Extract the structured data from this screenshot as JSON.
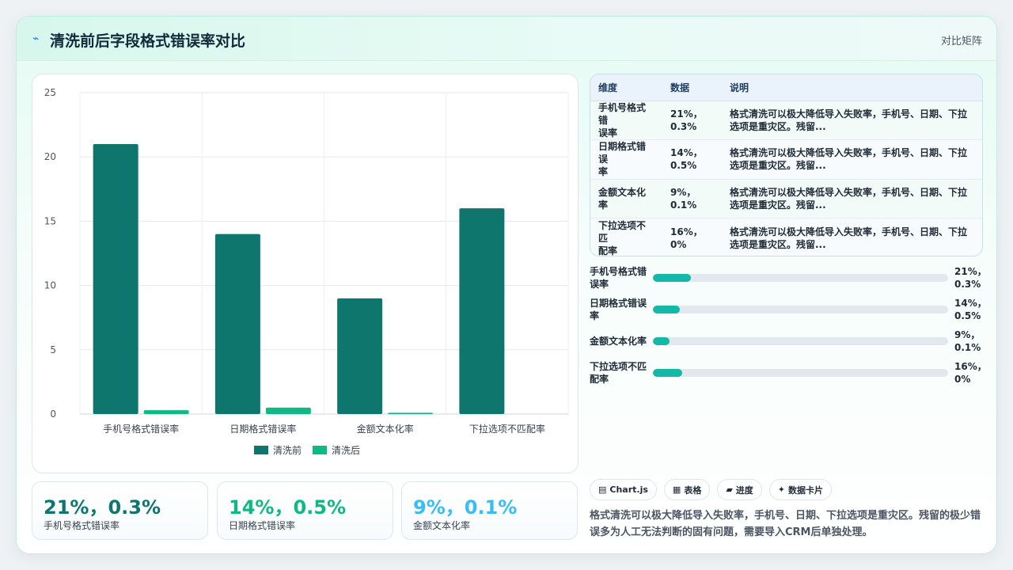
{
  "header": {
    "title": "清洗前后字段格式错误率对比",
    "badge": "对比矩阵",
    "title_icon": "sparkle-icon"
  },
  "chart_data": {
    "type": "bar",
    "categories": [
      "手机号格式错误率",
      "日期格式错误率",
      "金额文本化率",
      "下拉选项不匹配率"
    ],
    "series": [
      {
        "name": "清洗前",
        "values": [
          21,
          14,
          9,
          16
        ],
        "color": "#0f766e"
      },
      {
        "name": "清洗后",
        "values": [
          0.3,
          0.5,
          0.1,
          0
        ],
        "color": "#10b981"
      }
    ],
    "ylim": [
      0,
      25
    ],
    "yticks": [
      0,
      5,
      10,
      15,
      20,
      25
    ],
    "grid": true,
    "legend": "bottom"
  },
  "metrics": [
    {
      "value": "21%，0.3%",
      "label": "手机号格式错误率",
      "color": "#0f766e"
    },
    {
      "value": "14%，0.5%",
      "label": "日期格式错误率",
      "color": "#10b981"
    },
    {
      "value": "9%，0.1%",
      "label": "金额文本化率",
      "color": "#38bdf8"
    }
  ],
  "table": {
    "headers": [
      "维度",
      "数据",
      "说明"
    ],
    "rows": [
      {
        "dim": [
          "手机号格式错",
          "误率"
        ],
        "num": [
          "21%，",
          "0.3%"
        ],
        "desc": [
          "格式清洗可以极大降低导入失败率，手机号、日期、下拉",
          "选项是重灾区。残留..."
        ]
      },
      {
        "dim": [
          "日期格式错误",
          "率"
        ],
        "num": [
          "14%，",
          "0.5%"
        ],
        "desc": [
          "格式清洗可以极大降低导入失败率，手机号、日期、下拉",
          "选项是重灾区。残留..."
        ]
      },
      {
        "dim": [
          "金额文本化率",
          ""
        ],
        "num": [
          "9%，",
          "0.1%"
        ],
        "desc": [
          "格式清洗可以极大降低导入失败率，手机号、日期、下拉",
          "选项是重灾区。残留..."
        ]
      },
      {
        "dim": [
          "下拉选项不匹",
          "配率"
        ],
        "num": [
          "16%，0%",
          ""
        ],
        "desc": [
          "格式清洗可以极大降低导入失败率，手机号、日期、下拉",
          "选项是重灾区。残留..."
        ]
      }
    ]
  },
  "progress": [
    {
      "label": [
        "手机号格式错",
        "误率"
      ],
      "value": [
        "21%，",
        "0.3%"
      ],
      "fraction": 0.13
    },
    {
      "label": [
        "日期格式错误",
        "率"
      ],
      "value": [
        "14%，",
        "0.5%"
      ],
      "fraction": 0.09
    },
    {
      "label": [
        "金额文本化率",
        ""
      ],
      "value": [
        "9%，",
        "0.1%"
      ],
      "fraction": 0.055
    },
    {
      "label": [
        "下拉选项不匹",
        "配率"
      ],
      "value": [
        "16%，",
        "0%"
      ],
      "fraction": 0.1
    }
  ],
  "chips": [
    {
      "icon": "chart-icon",
      "glyph": "▤",
      "label": "Chart.js"
    },
    {
      "icon": "table-icon",
      "glyph": "▦",
      "label": "表格"
    },
    {
      "icon": "progress-icon",
      "glyph": "▰",
      "label": "进度"
    },
    {
      "icon": "sparkle-icon",
      "glyph": "✦",
      "label": "数据卡片"
    }
  ],
  "note": "格式清洗可以极大降低导入失败率，手机号、日期、下拉选项是重灾区。残留的极少错误多为人工无法判断的固有问题，需要导入CRM后单独处理。"
}
